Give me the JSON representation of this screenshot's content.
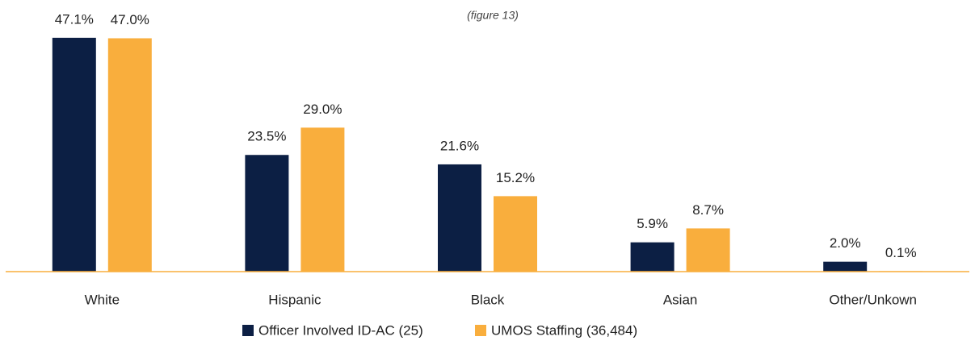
{
  "chart_data": {
    "type": "bar",
    "title": "(figure 13)",
    "categories": [
      "White",
      "Hispanic",
      "Black",
      "Asian",
      "Other/Unkown"
    ],
    "series": [
      {
        "name": "Officer Involved ID-AC (25)",
        "color": "#0c1f44",
        "values": [
          47.1,
          23.5,
          21.6,
          5.9,
          2.0
        ],
        "value_labels": [
          "47.1%",
          "23.5%",
          "21.6%",
          "5.9%",
          "2.0%"
        ]
      },
      {
        "name": "UMOS Staffing (36,484)",
        "color": "#f9ae3d",
        "values": [
          47.0,
          29.0,
          15.2,
          8.7,
          0.1
        ],
        "value_labels": [
          "47.0%",
          "29.0%",
          "15.2%",
          "8.7%",
          "0.1%"
        ]
      }
    ],
    "ylim": [
      0,
      50
    ],
    "legend": "bottom"
  }
}
